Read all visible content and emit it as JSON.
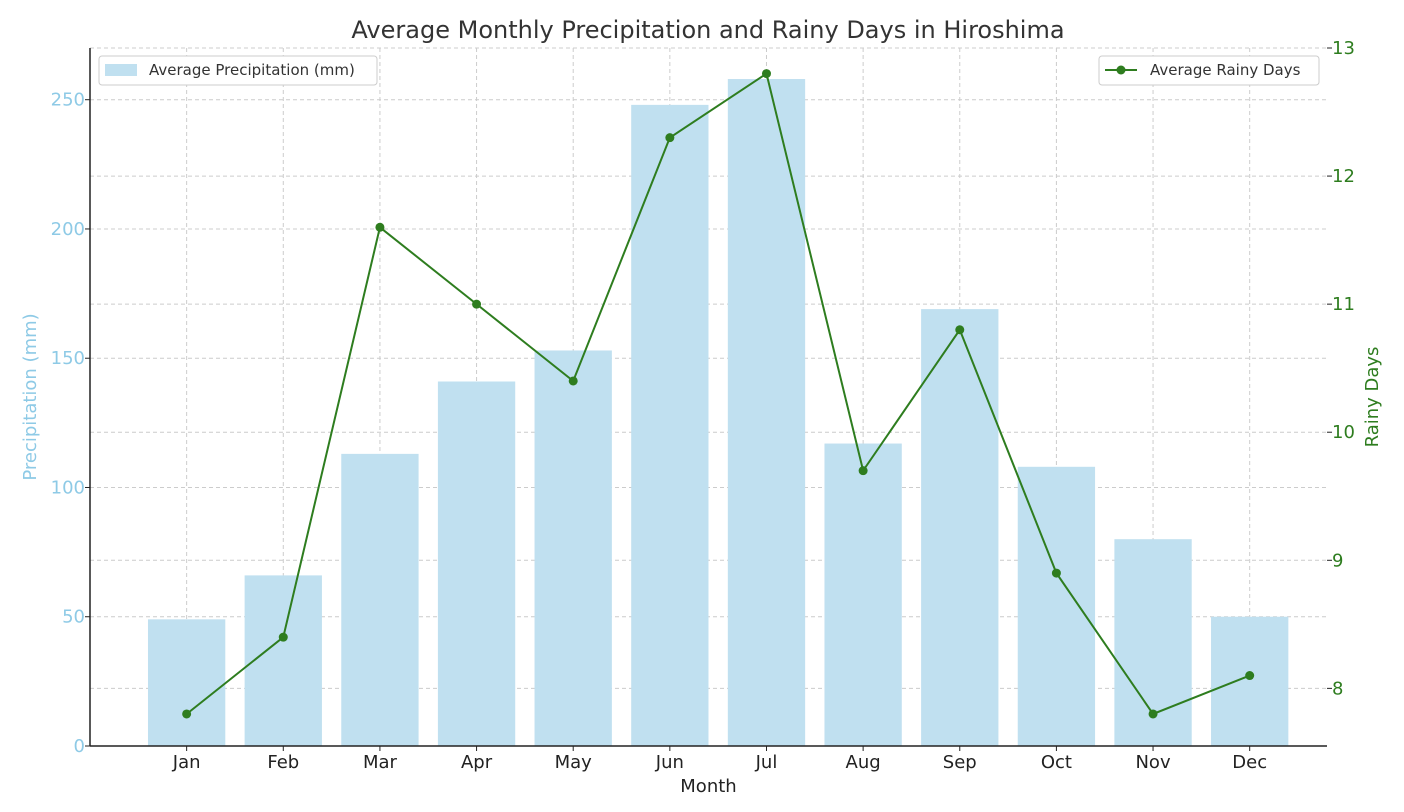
{
  "chart_data": {
    "type": "bar+line",
    "title": "Average Monthly Precipitation and Rainy Days in Hiroshima",
    "xlabel": "Month",
    "categories": [
      "Jan",
      "Feb",
      "Mar",
      "Apr",
      "May",
      "Jun",
      "Jul",
      "Aug",
      "Sep",
      "Oct",
      "Nov",
      "Dec"
    ],
    "bar_series": {
      "name": "Average Precipitation (mm)",
      "values": [
        49,
        66,
        113,
        141,
        153,
        248,
        258,
        117,
        169,
        108,
        80,
        50
      ],
      "color": "#c0e0f0"
    },
    "line_series": {
      "name": "Average Rainy Days",
      "values": [
        7.8,
        8.4,
        11.6,
        11.0,
        10.4,
        12.3,
        12.8,
        9.7,
        10.8,
        8.9,
        7.8,
        8.1
      ],
      "color": "#2e7d1f"
    },
    "y_left": {
      "label": "Precipitation (mm)",
      "ylim": [
        0,
        270
      ],
      "ticks": [
        0,
        50,
        100,
        150,
        200,
        250
      ],
      "color": "#8ecae6"
    },
    "y_right": {
      "label": "Rainy Days",
      "ylim": [
        7.55,
        13.0
      ],
      "ticks": [
        8,
        9,
        10,
        11,
        12,
        13
      ],
      "color": "#2e7d1f"
    },
    "grid": true,
    "legend_bar_position": "top-left",
    "legend_line_position": "top-right"
  }
}
